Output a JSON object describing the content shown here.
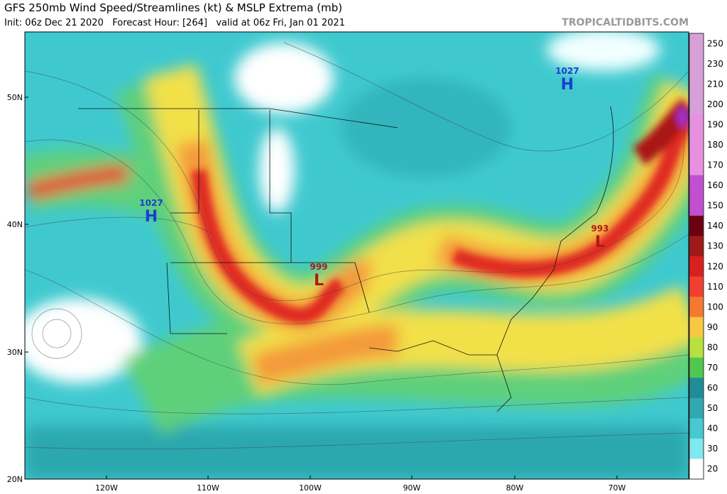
{
  "header": {
    "title": "GFS 250mb Wind Speed/Streamlines (kt) & MSLP Extrema (mb)",
    "subtitle": "Init: 06z Dec 21 2020   Forecast Hour: [264]   valid at 06z Fri, Jan 01 2021",
    "watermark": "TROPICALTIDBITS.COM"
  },
  "map": {
    "latitude_labels": [
      "50N",
      "40N",
      "30N",
      "20N"
    ],
    "longitude_labels": [
      "120W",
      "110W",
      "100W",
      "90W",
      "80W",
      "70W"
    ],
    "pressure_centers": [
      {
        "value": 1027,
        "type": "H"
      },
      {
        "value": 999,
        "type": "L"
      },
      {
        "value": 993,
        "type": "L"
      },
      {
        "value": 1027,
        "type": "H"
      }
    ]
  },
  "colorbar": {
    "ticks": [
      250,
      230,
      210,
      200,
      190,
      180,
      170,
      160,
      150,
      140,
      130,
      120,
      110,
      100,
      90,
      80,
      70,
      60,
      50,
      40,
      30,
      20
    ]
  }
}
